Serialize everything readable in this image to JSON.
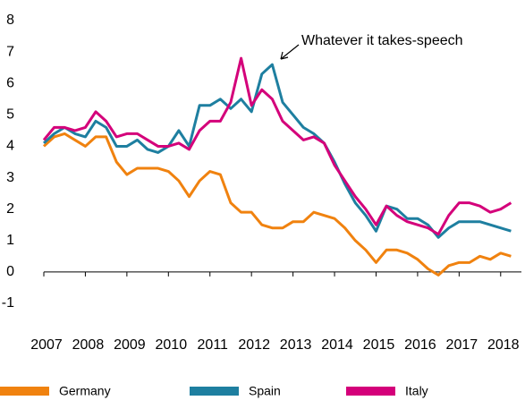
{
  "chart_data": {
    "type": "line",
    "annotation": "Whatever it takes-speech",
    "x": [
      2007,
      2007.25,
      2007.5,
      2007.75,
      2008,
      2008.25,
      2008.5,
      2008.75,
      2009,
      2009.25,
      2009.5,
      2009.75,
      2010,
      2010.25,
      2010.5,
      2010.75,
      2011,
      2011.25,
      2011.5,
      2011.75,
      2012,
      2012.25,
      2012.5,
      2012.75,
      2013,
      2013.25,
      2013.5,
      2013.75,
      2014,
      2014.25,
      2014.5,
      2014.75,
      2015,
      2015.25,
      2015.5,
      2015.75,
      2016,
      2016.25,
      2016.5,
      2016.75,
      2017,
      2017.25,
      2017.5,
      2017.75,
      2018,
      2018.25
    ],
    "series": [
      {
        "name": "Germany",
        "color": "#f0820f",
        "values": [
          4.0,
          4.3,
          4.4,
          4.2,
          4.0,
          4.3,
          4.3,
          3.5,
          3.1,
          3.3,
          3.3,
          3.3,
          3.2,
          2.9,
          2.4,
          2.9,
          3.2,
          3.1,
          2.2,
          1.9,
          1.9,
          1.5,
          1.4,
          1.4,
          1.6,
          1.6,
          1.9,
          1.8,
          1.7,
          1.4,
          1.0,
          0.7,
          0.3,
          0.7,
          0.7,
          0.6,
          0.4,
          0.1,
          -0.1,
          0.2,
          0.3,
          0.3,
          0.5,
          0.4,
          0.6,
          0.5
        ]
      },
      {
        "name": "Spain",
        "color": "#1e7fa0",
        "values": [
          4.1,
          4.4,
          4.6,
          4.4,
          4.3,
          4.8,
          4.6,
          4.0,
          4.0,
          4.2,
          3.9,
          3.8,
          4.0,
          4.5,
          4.0,
          5.3,
          5.3,
          5.5,
          5.2,
          5.5,
          5.1,
          6.3,
          6.6,
          5.4,
          5.0,
          4.6,
          4.4,
          4.1,
          3.5,
          2.8,
          2.2,
          1.8,
          1.3,
          2.1,
          2.0,
          1.7,
          1.7,
          1.5,
          1.1,
          1.4,
          1.6,
          1.6,
          1.6,
          1.5,
          1.4,
          1.3
        ]
      },
      {
        "name": "Italy",
        "color": "#d4007a",
        "values": [
          4.2,
          4.6,
          4.6,
          4.5,
          4.6,
          5.1,
          4.8,
          4.3,
          4.4,
          4.4,
          4.2,
          4.0,
          4.0,
          4.1,
          3.9,
          4.5,
          4.8,
          4.8,
          5.4,
          6.8,
          5.3,
          5.8,
          5.5,
          4.8,
          4.5,
          4.2,
          4.3,
          4.1,
          3.4,
          2.9,
          2.4,
          2.0,
          1.5,
          2.1,
          1.8,
          1.6,
          1.5,
          1.4,
          1.2,
          1.8,
          2.2,
          2.2,
          2.1,
          1.9,
          2.0,
          2.2
        ]
      }
    ],
    "xlim": [
      2007,
      2018.5
    ],
    "xticks": [
      2007,
      2008,
      2009,
      2010,
      2011,
      2012,
      2013,
      2014,
      2015,
      2016,
      2017,
      2018
    ],
    "ylim": [
      -1,
      8
    ],
    "yticks": [
      -1,
      0,
      1,
      2,
      3,
      4,
      5,
      6,
      7,
      8
    ],
    "legend": "bottom"
  }
}
